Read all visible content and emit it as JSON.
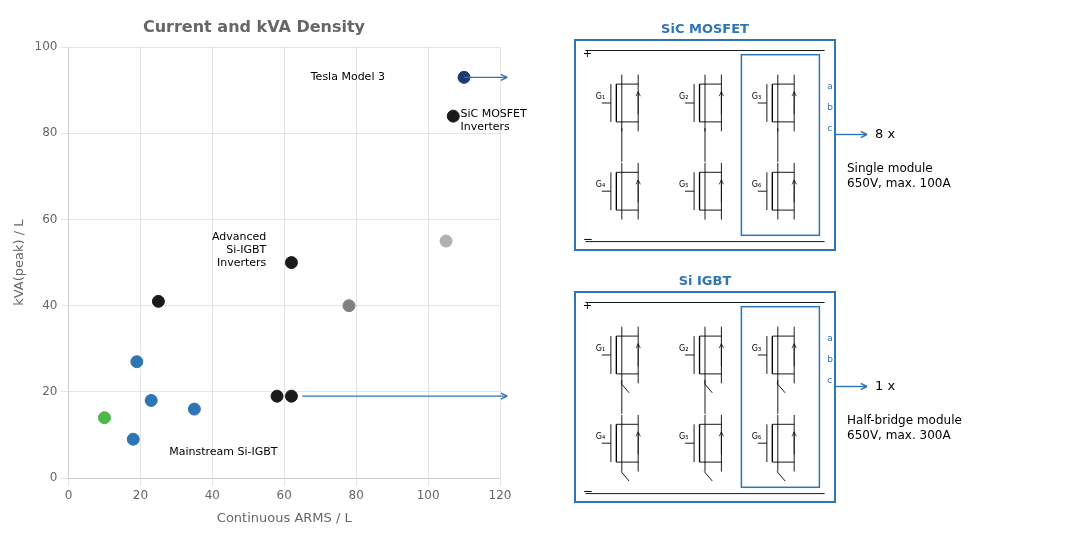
{
  "chart_data": {
    "type": "scatter",
    "title": "Current and kVA Density",
    "xlabel": "Continuous ARMS / L",
    "ylabel": "kVA(peak) / L",
    "x": [
      10,
      18,
      19,
      23,
      25,
      35,
      58,
      62,
      62,
      78,
      105,
      107,
      110
    ],
    "values": [
      14,
      9,
      27,
      18,
      41,
      16,
      19,
      19,
      50,
      40,
      55,
      84,
      93
    ],
    "colors": [
      "#4db848",
      "#2e75b6",
      "#2e75b6",
      "#2e75b6",
      "#1a1a1a",
      "#2e75b6",
      "#1a1a1a",
      "#1a1a1a",
      "#1a1a1a",
      "#808080",
      "#b0b0b0",
      "#1a1a1a",
      "#1e3a6e"
    ],
    "xlim": [
      0,
      120
    ],
    "ylim": [
      0,
      100
    ],
    "xticks": [
      0,
      20,
      40,
      60,
      80,
      100,
      120
    ],
    "yticks": [
      0,
      20,
      40,
      60,
      80,
      100
    ],
    "grid": true,
    "annotations": [
      {
        "text": "Tesla Model 3",
        "x": 88,
        "y": 93,
        "align": "right"
      },
      {
        "text": "SiC MOSFET\nInverters",
        "x": 109,
        "y": 83,
        "align": "left"
      },
      {
        "text": "Advanced\nSi-IGBT\nInverters",
        "x": 55,
        "y": 53,
        "align": "right"
      },
      {
        "text": "Mainstream Si-IGBT",
        "x": 28,
        "y": 6,
        "align": "left"
      }
    ],
    "arrows": [
      {
        "from": [
          110,
          93
        ],
        "to": [
          122,
          93
        ]
      },
      {
        "from": [
          65,
          19
        ],
        "to": [
          122,
          19
        ]
      }
    ],
    "line_color": "#2e75b6",
    "diagrams": [
      {
        "title": "SiC MOSFET",
        "type": "mosfet",
        "color": "#2e75b6",
        "gate_labels": [
          "G₁",
          "G₂",
          "G₃",
          "G₄",
          "G₅",
          "G₆"
        ],
        "phase_labels": [
          "a",
          "b",
          "c"
        ],
        "rail_labels": [
          "+",
          "−"
        ],
        "count_label": "8 x",
        "note": "Single module\n650V, max. 100A"
      },
      {
        "title": "Si IGBT",
        "type": "igbt",
        "color": "#2e75b6",
        "gate_labels": [
          "G₁",
          "G₂",
          "G₃",
          "G₄",
          "G₅",
          "G₆"
        ],
        "phase_labels": [
          "a",
          "b",
          "c"
        ],
        "rail_labels": [
          "+",
          "−"
        ],
        "count_label": "1 x",
        "note": "Half-bridge module\n650V, max. 300A"
      }
    ]
  }
}
